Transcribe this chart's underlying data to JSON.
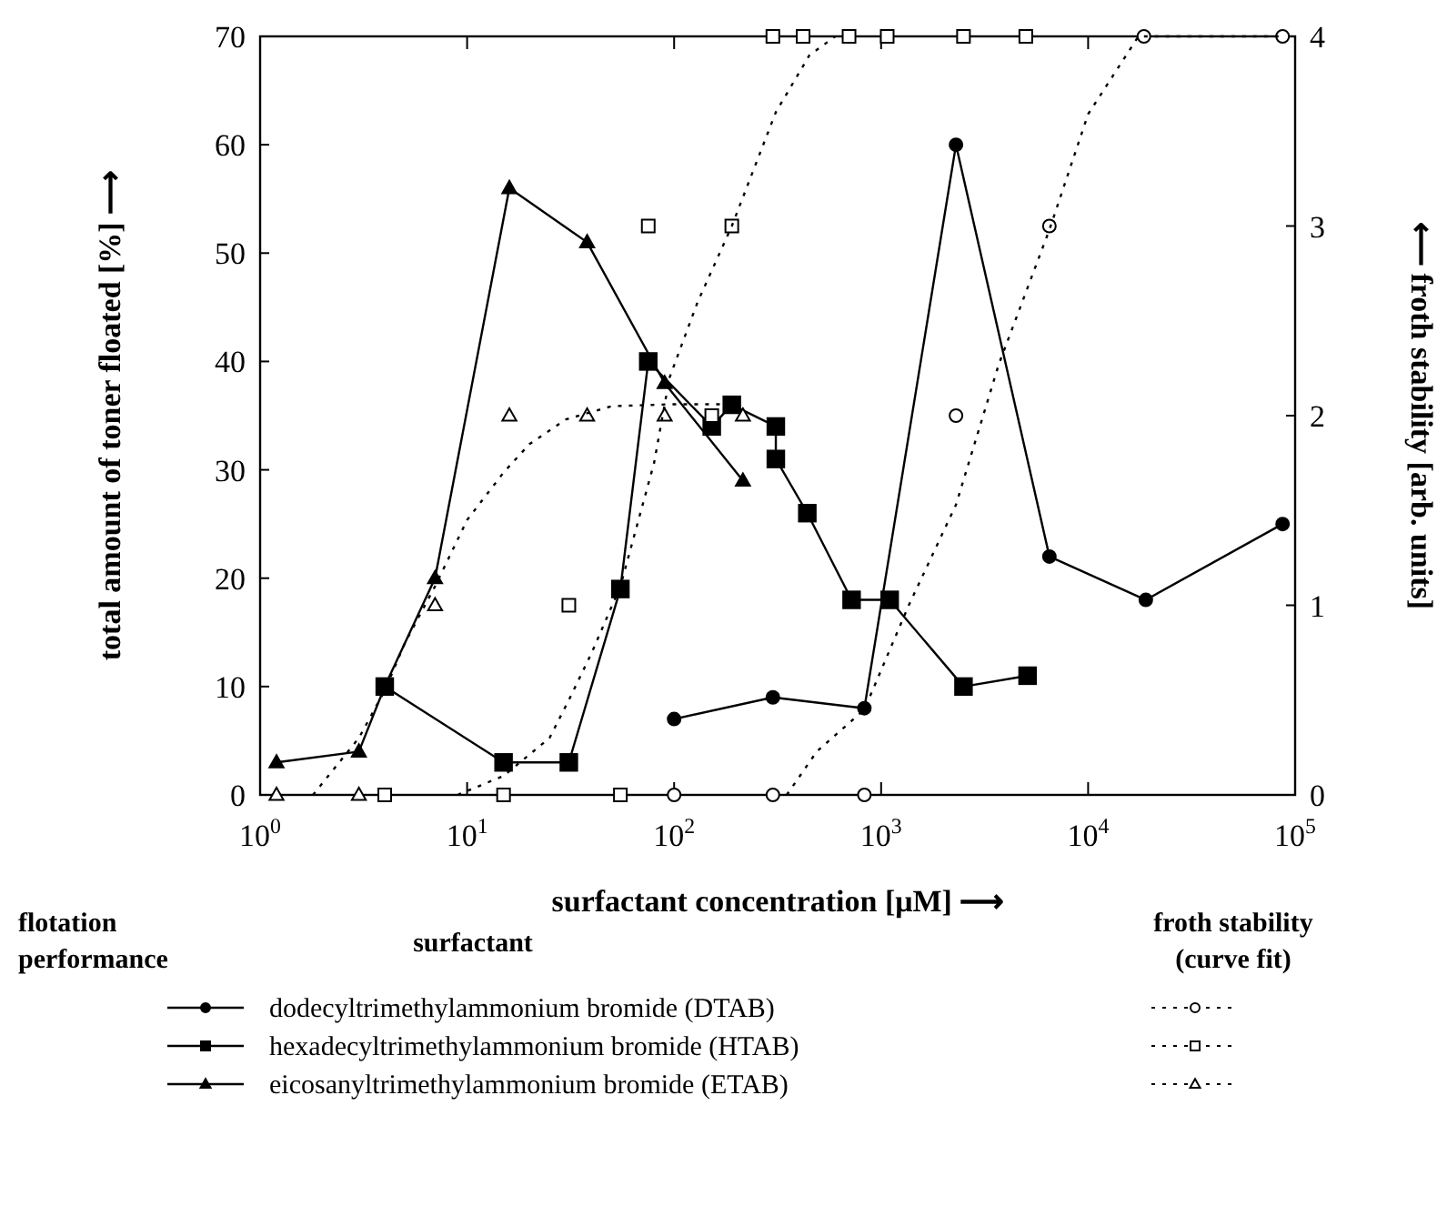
{
  "chart_data": {
    "type": "line",
    "xlabel": "surfactant concentration [μM] ⟶",
    "ylabel": "total amount of toner floated [%] ⟶",
    "y2label": "⟵ froth stability [arb. units]",
    "legend_title": "surfactant",
    "annotations": [
      "flotation performance",
      "froth stability (curve fit)"
    ],
    "log": "x",
    "grid": false,
    "legend": "bottom",
    "xlim": [
      1,
      100000
    ],
    "xticks": [
      {
        "value": 1,
        "label": "10$^{0}$"
      },
      {
        "value": 10,
        "label": "10$^{1}$"
      },
      {
        "value": 100,
        "label": "10$^{2}$"
      },
      {
        "value": 1000,
        "label": "10$^{3}$"
      },
      {
        "value": 10000,
        "label": "10$^{4}$"
      },
      {
        "value": 100000,
        "label": "10$^{5}$"
      }
    ],
    "ylim": [
      0,
      70
    ],
    "yticks": [
      0,
      10,
      20,
      30,
      40,
      50,
      60,
      70
    ],
    "y2lim": [
      0,
      4
    ],
    "y2ticks": [
      0,
      1,
      2,
      3,
      4
    ],
    "series": [
      {
        "name": "dodecyltrimethylammonium bromide (DTAB)",
        "marker": "circle",
        "color": "#000000",
        "x": [
          100,
          300,
          830,
          2300,
          6500,
          19000,
          87000
        ],
        "values": [
          7,
          9,
          8,
          60,
          22,
          18,
          25
        ]
      },
      {
        "name": "hexadecyltrimethylammonium bromide (HTAB)",
        "marker": "square",
        "color": "#000000",
        "x": [
          4,
          15,
          31,
          55,
          75,
          152,
          190,
          310,
          310,
          440,
          720,
          1100,
          2500,
          5100
        ],
        "values": [
          10,
          3,
          3,
          19,
          40,
          34,
          36,
          34,
          31,
          26,
          18,
          18,
          10,
          11
        ]
      },
      {
        "name": "eicosanyltrimethylammonium bromide (ETAB)",
        "marker": "triangle",
        "color": "#000000",
        "x": [
          1.2,
          3,
          4,
          7,
          16,
          38,
          90,
          215
        ],
        "values": [
          3,
          4,
          10,
          20,
          56,
          51,
          38,
          29
        ]
      },
      {
        "type": "scatter",
        "axis": "y2",
        "marker": "circle",
        "color": "#000000",
        "x": [
          100,
          300,
          830,
          2300,
          6500,
          18600,
          87000
        ],
        "values": [
          0,
          0,
          0,
          2,
          3,
          4,
          4
        ]
      },
      {
        "type": "scatter",
        "axis": "y2",
        "marker": "square",
        "color": "#000000",
        "x": [
          4,
          15,
          31,
          55,
          75,
          152,
          190,
          300,
          420,
          700,
          1070,
          2500,
          5000
        ],
        "values": [
          0,
          0,
          1,
          0,
          3,
          2,
          3,
          4,
          4,
          4,
          4,
          4,
          4
        ]
      },
      {
        "type": "scatter",
        "axis": "y2",
        "marker": "triangle",
        "color": "#000000",
        "x": [
          1.2,
          3,
          7,
          16,
          38,
          90,
          215
        ],
        "values": [
          0,
          0,
          1,
          2,
          2,
          2,
          2
        ]
      },
      {
        "type": "line",
        "axis": "y2",
        "line_style": "dotted",
        "marker": "none",
        "color": "#000000",
        "x": [
          350,
          490,
          830,
          1360,
          2300,
          3700,
          6500,
          10000,
          17500,
          87000
        ],
        "values": [
          0,
          0.23,
          0.45,
          1.0,
          1.53,
          2.27,
          2.98,
          3.59,
          4,
          4
        ]
      },
      {
        "type": "line",
        "axis": "y2",
        "line_style": "dotted",
        "marker": "none",
        "color": "#000000",
        "x": [
          9,
          15,
          25,
          31,
          40,
          55,
          80,
          95,
          130,
          190,
          310,
          450,
          600
        ],
        "values": [
          0,
          0.1,
          0.3,
          0.5,
          0.75,
          1.1,
          1.75,
          2.2,
          2.6,
          3.0,
          3.6,
          3.9,
          4
        ]
      },
      {
        "type": "line",
        "axis": "y2",
        "line_style": "dotted",
        "marker": "none",
        "color": "#000000",
        "x": [
          1.8,
          3,
          4,
          5,
          7,
          10,
          15,
          20,
          30,
          50,
          100,
          200
        ],
        "values": [
          0,
          0.3,
          0.55,
          0.8,
          1.1,
          1.45,
          1.7,
          1.85,
          1.98,
          2.05,
          2.06,
          2.06
        ]
      }
    ]
  }
}
